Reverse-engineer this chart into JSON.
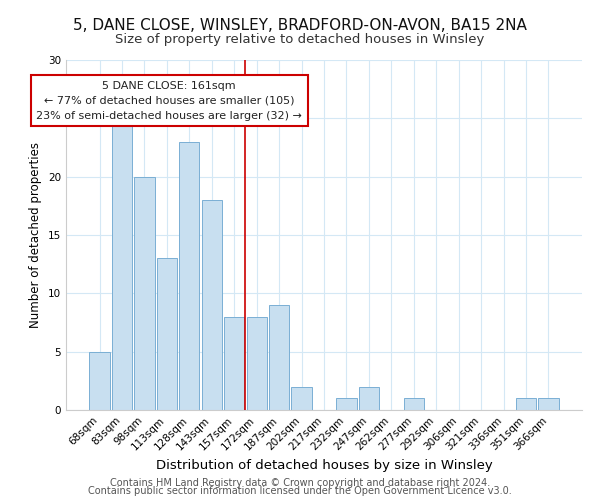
{
  "title": "5, DANE CLOSE, WINSLEY, BRADFORD-ON-AVON, BA15 2NA",
  "subtitle": "Size of property relative to detached houses in Winsley",
  "xlabel": "Distribution of detached houses by size in Winsley",
  "ylabel": "Number of detached properties",
  "bar_labels": [
    "68sqm",
    "83sqm",
    "98sqm",
    "113sqm",
    "128sqm",
    "143sqm",
    "157sqm",
    "172sqm",
    "187sqm",
    "202sqm",
    "217sqm",
    "232sqm",
    "247sqm",
    "262sqm",
    "277sqm",
    "292sqm",
    "306sqm",
    "321sqm",
    "336sqm",
    "351sqm",
    "366sqm"
  ],
  "bar_values": [
    5,
    25,
    20,
    13,
    23,
    18,
    8,
    8,
    9,
    2,
    0,
    1,
    2,
    0,
    1,
    0,
    0,
    0,
    0,
    1,
    1
  ],
  "bar_color": "#c8dff0",
  "bar_edge_color": "#7aafd4",
  "vline_color": "#cc0000",
  "vline_x": 6.5,
  "ylim": [
    0,
    30
  ],
  "yticks": [
    0,
    5,
    10,
    15,
    20,
    25,
    30
  ],
  "annotation_title": "5 DANE CLOSE: 161sqm",
  "annotation_line1": "← 77% of detached houses are smaller (105)",
  "annotation_line2": "23% of semi-detached houses are larger (32) →",
  "annotation_box_color": "#ffffff",
  "annotation_box_edge_color": "#cc0000",
  "footer1": "Contains HM Land Registry data © Crown copyright and database right 2024.",
  "footer2": "Contains public sector information licensed under the Open Government Licence v3.0.",
  "title_fontsize": 11,
  "subtitle_fontsize": 9.5,
  "xlabel_fontsize": 9.5,
  "ylabel_fontsize": 8.5,
  "tick_fontsize": 7.5,
  "annotation_fontsize": 8,
  "footer_fontsize": 7,
  "grid_color": "#d4e8f5",
  "background_color": "#ffffff"
}
